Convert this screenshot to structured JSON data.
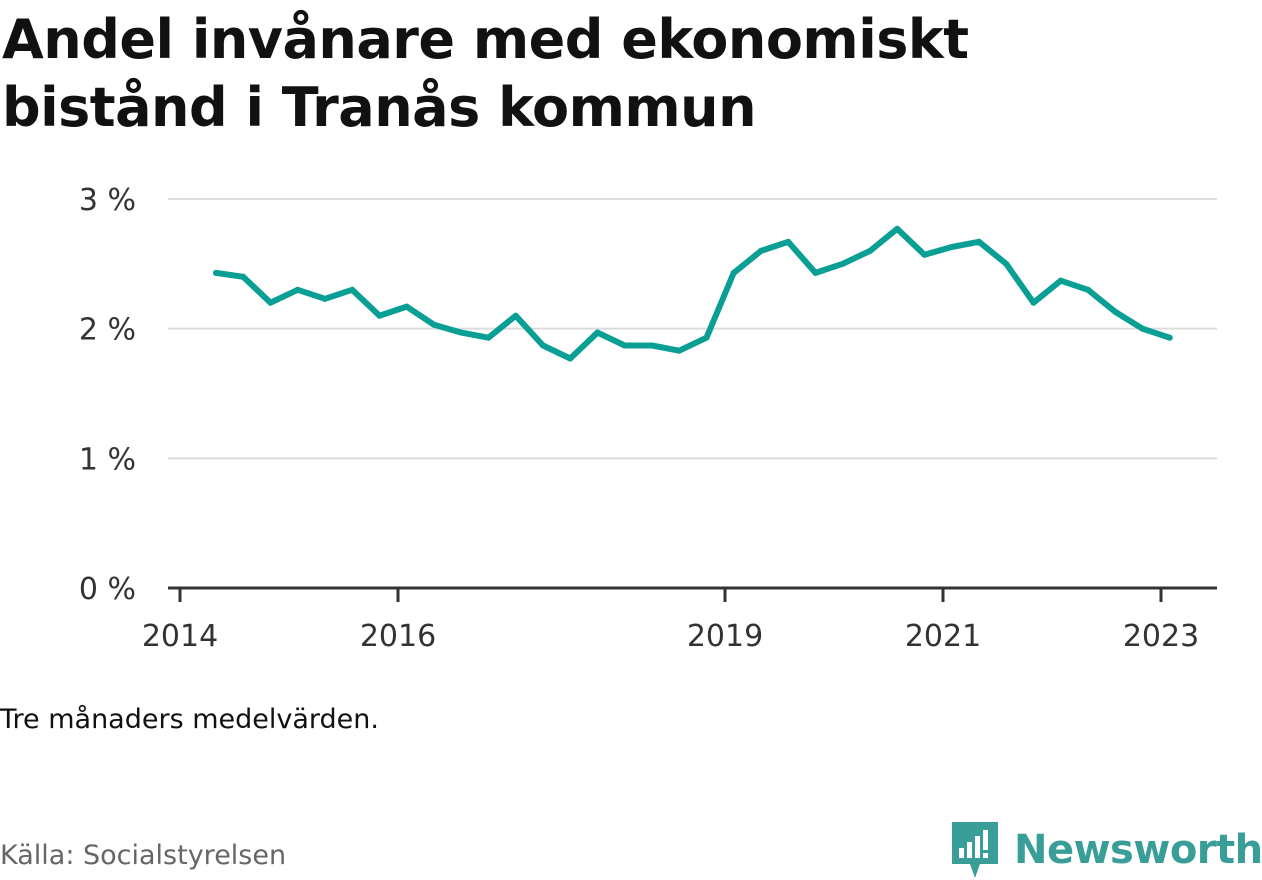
{
  "title": "Andel invånare med ekonomiskt bistånd i Tranås kommun",
  "note": "Tre månaders medelvärden.",
  "source": "Källa: Socialstyrelsen",
  "brand": "Newsworthy",
  "colors": {
    "line": "#0a9f94",
    "grid": "#dcdcdc",
    "axis": "#333333",
    "brand": "#3a9e98"
  },
  "chart_data": {
    "type": "line",
    "title": "Andel invånare med ekonomiskt bistånd i Tranås kommun",
    "xlabel": "",
    "ylabel": "",
    "ylim": [
      0,
      3
    ],
    "xlim": [
      2014.0,
      2023.5
    ],
    "y_ticks": [
      {
        "value": 0,
        "label": "0 %"
      },
      {
        "value": 1,
        "label": "1 %"
      },
      {
        "value": 2,
        "label": "2 %"
      },
      {
        "value": 3,
        "label": "3 %"
      }
    ],
    "x_ticks": [
      {
        "value": 2014,
        "label": "2014"
      },
      {
        "value": 2016,
        "label": "2016"
      },
      {
        "value": 2019,
        "label": "2019"
      },
      {
        "value": 2021,
        "label": "2021"
      },
      {
        "value": 2023,
        "label": "2023"
      }
    ],
    "grid": true,
    "series": [
      {
        "x": [
          2014.33,
          2014.58,
          2014.83,
          2015.08,
          2015.33,
          2015.58,
          2015.83,
          2016.08,
          2016.33,
          2016.58,
          2016.83,
          2017.08,
          2017.33,
          2017.58,
          2017.83,
          2018.08,
          2018.33,
          2018.58,
          2018.83,
          2019.08,
          2019.33,
          2019.58,
          2019.83,
          2020.08,
          2020.33,
          2020.58,
          2020.83,
          2021.08,
          2021.33,
          2021.58,
          2021.83,
          2022.08,
          2022.33,
          2022.58,
          2022.83,
          2023.08
        ],
        "values": [
          2.43,
          2.4,
          2.2,
          2.3,
          2.23,
          2.3,
          2.1,
          2.17,
          2.03,
          1.97,
          1.93,
          2.1,
          1.87,
          1.77,
          1.97,
          1.87,
          1.87,
          1.83,
          1.93,
          2.43,
          2.6,
          2.67,
          2.43,
          2.5,
          2.6,
          2.77,
          2.57,
          2.63,
          2.67,
          2.5,
          2.2,
          2.37,
          2.3,
          2.13,
          2.0,
          1.93
        ]
      }
    ]
  }
}
